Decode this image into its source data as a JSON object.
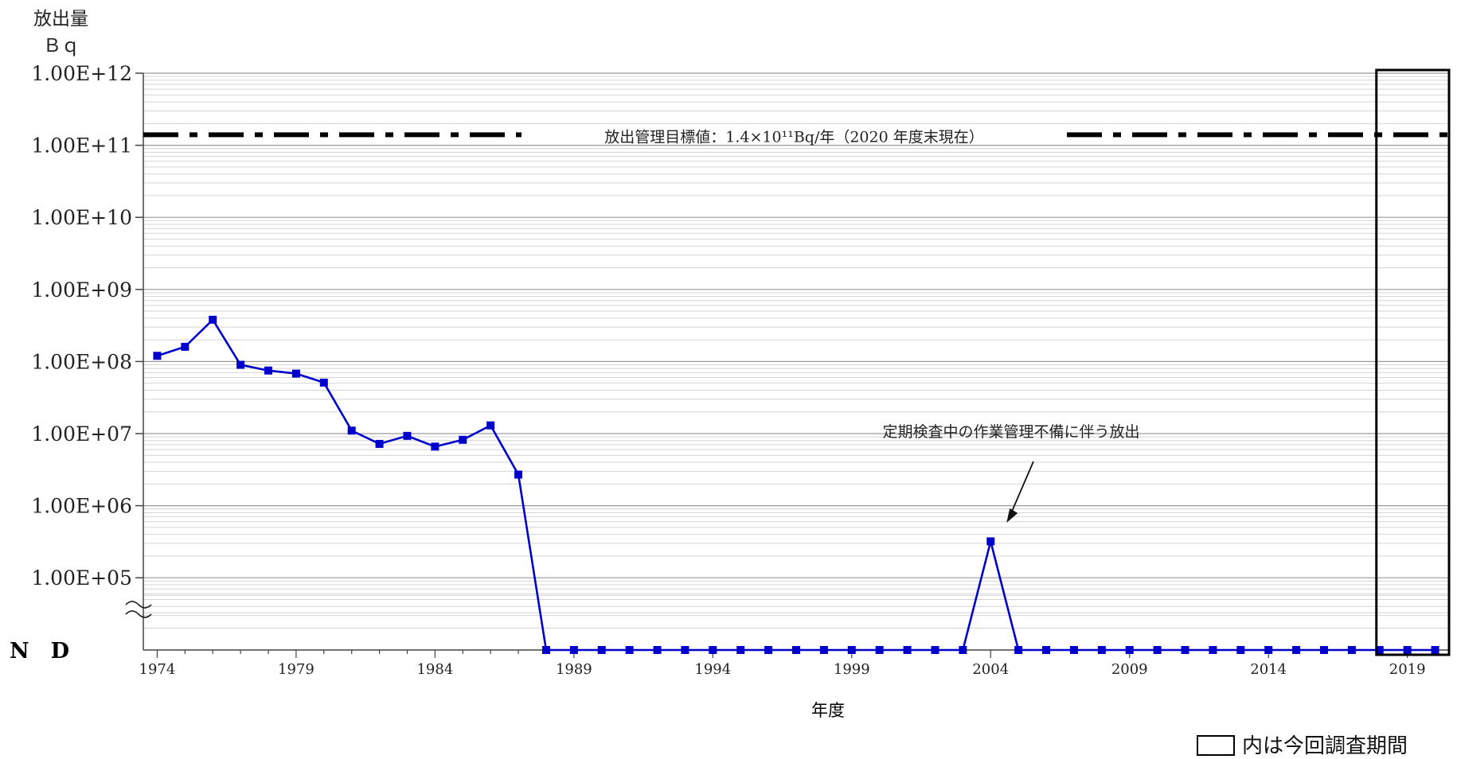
{
  "chart_data": {
    "type": "line",
    "ylabel_line1": "放出量",
    "ylabel_line2": "Ｂｑ",
    "xlabel": "年度",
    "y_scale": "log",
    "ylim": [
      10000,
      1000000000000
    ],
    "y_tick_labels": [
      "1.00E+12",
      "1.00E+11",
      "1.00E+10",
      "1.00E+09",
      "1.00E+08",
      "1.00E+07",
      "1.00E+06",
      "1.00E+05"
    ],
    "y_tick_values": [
      1000000000000.0,
      100000000000.0,
      10000000000.0,
      1000000000.0,
      100000000.0,
      10000000.0,
      1000000.0,
      100000.0
    ],
    "nd_label": "N　D",
    "axis_break": true,
    "xlim": [
      1973.5,
      2020.5
    ],
    "x_tick_labels": [
      "1974",
      "1979",
      "1984",
      "1989",
      "1994",
      "1999",
      "2004",
      "2009",
      "2014",
      "2019"
    ],
    "x_tick_values": [
      1974,
      1979,
      1984,
      1989,
      1994,
      1999,
      2004,
      2009,
      2014,
      2019
    ],
    "grid": "horizontal",
    "series": [
      {
        "color": "#0000cc",
        "x": [
          1974,
          1975,
          1976,
          1977,
          1978,
          1979,
          1980,
          1981,
          1982,
          1983,
          1984,
          1985,
          1986,
          1987,
          1988,
          1989,
          1990,
          1991,
          1992,
          1993,
          1994,
          1995,
          1996,
          1997,
          1998,
          1999,
          2000,
          2001,
          2002,
          2003,
          2004,
          2005,
          2006,
          2007,
          2008,
          2009,
          2010,
          2011,
          2012,
          2013,
          2014,
          2015,
          2016,
          2017,
          2018,
          2019,
          2020
        ],
        "values": [
          120000000,
          160000000,
          380000000,
          90000000,
          75000000,
          68000000,
          51000000,
          11000000,
          7200000,
          9300000,
          6600000,
          8200000,
          13000000,
          2700000,
          "ND",
          "ND",
          "ND",
          "ND",
          "ND",
          "ND",
          "ND",
          "ND",
          "ND",
          "ND",
          "ND",
          "ND",
          "ND",
          "ND",
          "ND",
          "ND",
          320000,
          "ND",
          "ND",
          "ND",
          "ND",
          "ND",
          "ND",
          "ND",
          "ND",
          "ND",
          "ND",
          "ND",
          "ND",
          "ND",
          "ND",
          "ND",
          "ND"
        ]
      }
    ],
    "target_line": {
      "value": 140000000000,
      "label": "放出管理目標値：1.4×10¹¹Bq/年（2020 年度末現在）",
      "style": "dash-dot",
      "color": "#000000"
    },
    "annotation": {
      "text": "定期検査中の作業管理不備に伴う放出",
      "points_to_year": 2004
    },
    "highlight_box": {
      "x_range": [
        2018,
        2020
      ],
      "legend_text": "内は今回調査期間"
    }
  }
}
